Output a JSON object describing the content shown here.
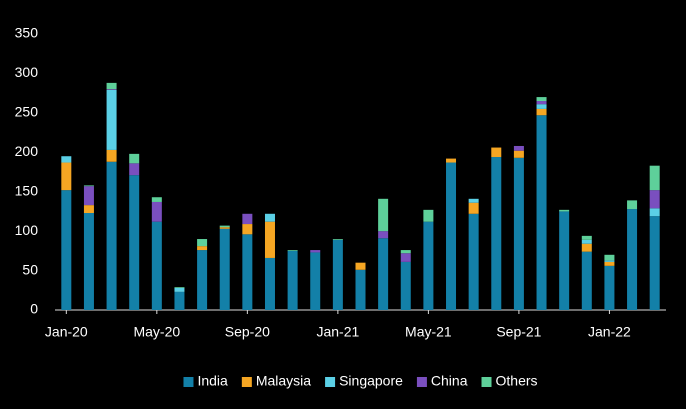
{
  "chart_data": {
    "type": "stacked_bar",
    "categories": [
      "Jan-20",
      null,
      null,
      null,
      "May-20",
      null,
      null,
      null,
      "Sep-20",
      null,
      null,
      null,
      "Jan-21",
      null,
      null,
      null,
      "May-21",
      null,
      null,
      null,
      "Sep-21",
      null,
      null,
      null,
      "Jan-22",
      null,
      null
    ],
    "series": [
      {
        "name": "India",
        "color": "#1380a8",
        "values": [
          152,
          123,
          188,
          171,
          112,
          23,
          76,
          103,
          96,
          66,
          75,
          73,
          89,
          51,
          91,
          61,
          112,
          187,
          122,
          194,
          193,
          247,
          125,
          74,
          56,
          128,
          119
        ]
      },
      {
        "name": "Malaysia",
        "color": "#f5a623",
        "values": [
          35,
          10,
          15,
          0,
          0,
          0,
          5,
          2,
          13,
          46,
          0,
          0,
          0,
          9,
          0,
          0,
          0,
          5,
          14,
          12,
          9,
          8,
          0,
          10,
          5,
          0,
          0
        ]
      },
      {
        "name": "Singapore",
        "color": "#5bd0e6",
        "values": [
          8,
          0,
          76,
          0,
          0,
          5,
          0,
          0,
          0,
          10,
          0,
          0,
          0,
          0,
          0,
          0,
          0,
          0,
          5,
          0,
          0,
          6,
          0,
          5,
          2,
          0,
          10
        ]
      },
      {
        "name": "China",
        "color": "#7a4fbf",
        "values": [
          0,
          24,
          1,
          15,
          25,
          0,
          0,
          0,
          13,
          0,
          0,
          3,
          0,
          0,
          9,
          11,
          0,
          0,
          0,
          0,
          6,
          4,
          0,
          0,
          0,
          0,
          23
        ]
      },
      {
        "name": "Others",
        "color": "#5ed09a",
        "values": [
          0,
          1,
          8,
          12,
          6,
          1,
          9,
          2,
          0,
          0,
          1,
          0,
          1,
          0,
          41,
          4,
          15,
          0,
          0,
          0,
          0,
          5,
          2,
          5,
          7,
          11,
          31
        ]
      }
    ],
    "ylim": [
      0,
      350
    ],
    "yticks": [
      0,
      50,
      100,
      150,
      200,
      250,
      300,
      350
    ]
  }
}
